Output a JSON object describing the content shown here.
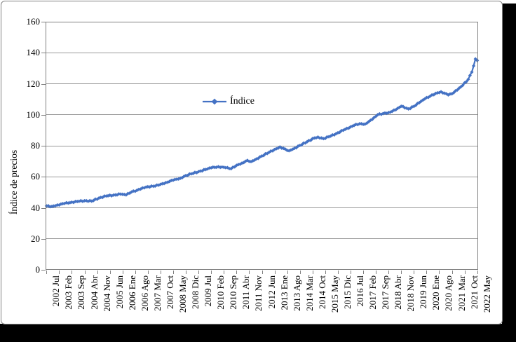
{
  "window": {
    "background": "#ffffff",
    "shadow_color": "#000000",
    "canvas_border_color": "#808080"
  },
  "chart_data": {
    "type": "line",
    "title": "",
    "xlabel": "",
    "ylabel": "Índice de precios",
    "ylim": [
      0,
      160
    ],
    "yticks": [
      0,
      20,
      40,
      60,
      80,
      100,
      120,
      140,
      160
    ],
    "grid": "horizontal",
    "gridline_color": "#999999",
    "axis_color": "#808080",
    "text_color": "#000000",
    "legend": {
      "label": "Índice",
      "marker": "diamond",
      "position": "inside-top-center"
    },
    "series": [
      {
        "name": "Índice",
        "color": "#4472C4",
        "marker": "diamond",
        "months_total": 239,
        "x_start": "2002 Jul",
        "x_end": "2022 May",
        "anchors_month_value": [
          [
            0,
            41.2
          ],
          [
            3,
            40.9
          ],
          [
            6,
            41.8
          ],
          [
            10,
            42.8
          ],
          [
            14,
            43.6
          ],
          [
            18,
            44.2
          ],
          [
            22,
            44.6
          ],
          [
            25,
            44.3
          ],
          [
            29,
            46.3
          ],
          [
            33,
            47.6
          ],
          [
            37,
            48.2
          ],
          [
            41,
            48.8
          ],
          [
            44,
            48.3
          ],
          [
            47,
            50.2
          ],
          [
            50,
            51.3
          ],
          [
            53,
            52.8
          ],
          [
            56,
            53.6
          ],
          [
            59,
            53.9
          ],
          [
            62,
            54.6
          ],
          [
            66,
            56.3
          ],
          [
            70,
            57.8
          ],
          [
            74,
            59.1
          ],
          [
            77,
            60.8
          ],
          [
            80,
            61.9
          ],
          [
            84,
            63.3
          ],
          [
            88,
            64.7
          ],
          [
            91,
            65.8
          ],
          [
            95,
            66.5
          ],
          [
            99,
            65.9
          ],
          [
            102,
            65.2
          ],
          [
            105,
            67.4
          ],
          [
            108,
            68.8
          ],
          [
            111,
            70.6
          ],
          [
            113,
            69.8
          ],
          [
            116,
            71.5
          ],
          [
            119,
            73.4
          ],
          [
            123,
            75.8
          ],
          [
            126,
            77.6
          ],
          [
            129,
            79.2
          ],
          [
            132,
            77.8
          ],
          [
            134,
            76.8
          ],
          [
            137,
            78.4
          ],
          [
            140,
            80.2
          ],
          [
            144,
            82.6
          ],
          [
            148,
            85.0
          ],
          [
            150,
            85.6
          ],
          [
            153,
            84.6
          ],
          [
            156,
            85.8
          ],
          [
            160,
            87.8
          ],
          [
            164,
            90.0
          ],
          [
            168,
            92.2
          ],
          [
            171,
            93.8
          ],
          [
            174,
            94.2
          ],
          [
            176,
            94.0
          ],
          [
            180,
            97.0
          ],
          [
            183,
            100.0
          ],
          [
            186,
            100.8
          ],
          [
            189,
            101.4
          ],
          [
            193,
            103.2
          ],
          [
            196,
            105.5
          ],
          [
            200,
            103.8
          ],
          [
            203,
            105.4
          ],
          [
            206,
            107.8
          ],
          [
            209,
            110.2
          ],
          [
            212,
            112.0
          ],
          [
            215,
            113.8
          ],
          [
            218,
            114.8
          ],
          [
            220,
            113.9
          ],
          [
            222,
            112.8
          ],
          [
            224,
            113.5
          ],
          [
            227,
            116.0
          ],
          [
            230,
            119.0
          ],
          [
            233,
            122.8
          ],
          [
            235,
            127.5
          ],
          [
            236,
            131.5
          ],
          [
            237,
            136.0
          ],
          [
            238,
            135.0
          ]
        ],
        "noise_amplitude": 0.3
      }
    ],
    "x_tick_step_months": 7,
    "x_tick_labels": [
      "2002 Jul",
      "2003 Feb",
      "2003 Sep",
      "2004 Abr",
      "2004 Nov",
      "2005 Jun",
      "2006 Ene",
      "2006 Ago",
      "2007 Mar",
      "2007 Oct",
      "2008 May",
      "2008 Dic",
      "2009 Jul",
      "2010 Feb",
      "2010 Sep",
      "2011 Abr",
      "2011 Nov",
      "2012 Jun",
      "2013 Ene",
      "2013 Ago",
      "2014 Mar",
      "2014 Oct",
      "2015 May",
      "2015 Dic",
      "2016 Jul",
      "2017 Feb",
      "2017 Sep",
      "2018 Abr",
      "2018 Nov",
      "2019 Jun",
      "2020 Ene",
      "2020 Ago",
      "2021 Mar",
      "2021 Oct",
      "2022 May"
    ]
  }
}
